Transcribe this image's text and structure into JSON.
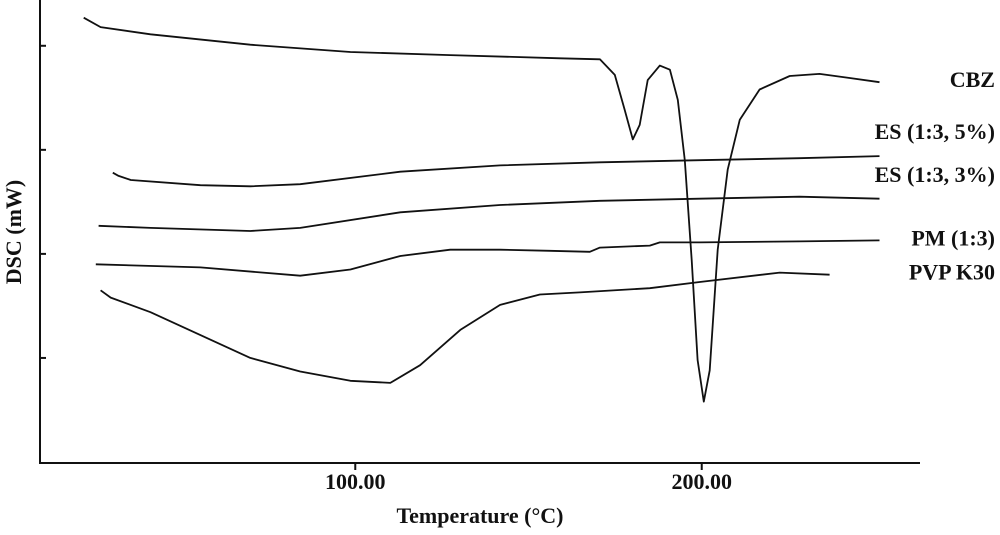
{
  "chart_data": {
    "type": "line",
    "x_label": "Temperature (°C)",
    "y_label": "DSC (mW)",
    "xlim": [
      9,
      263
    ],
    "xticks": [
      {
        "value": 100,
        "label": "100.00"
      },
      {
        "value": 200,
        "label": "200.00"
      }
    ],
    "ylim": [
      0,
      4.44
    ],
    "yticks": [
      1,
      2,
      3,
      4
    ],
    "series": [
      {
        "name": "CBZ",
        "color": "#111111",
        "x": [
          21.6,
          26.5,
          40.9,
          69.7,
          98.6,
          127.4,
          159.1,
          170.6,
          174.9,
          177.8,
          180.1,
          182.1,
          184.4,
          187.9,
          190.8,
          193.1,
          195.1,
          197.1,
          198.8,
          200.6,
          202.3,
          204.6,
          207.5,
          211.0,
          216.7,
          225.4,
          234.0,
          242.7,
          251.3
        ],
        "values": [
          4.27,
          4.18,
          4.11,
          4.01,
          3.94,
          3.91,
          3.88,
          3.87,
          3.72,
          3.38,
          3.1,
          3.24,
          3.67,
          3.81,
          3.77,
          3.48,
          2.9,
          1.94,
          0.98,
          0.58,
          0.88,
          2.04,
          2.81,
          3.29,
          3.58,
          3.71,
          3.73,
          3.69,
          3.65
        ]
      },
      {
        "name": "ES (1:3, 5%)",
        "color": "#111111",
        "x": [
          30.0,
          31.7,
          35.2,
          55.3,
          69.7,
          84.1,
          113.0,
          141.8,
          170.6,
          199.4,
          228.2,
          251.3
        ],
        "values": [
          2.78,
          2.75,
          2.71,
          2.66,
          2.65,
          2.67,
          2.79,
          2.85,
          2.88,
          2.9,
          2.92,
          2.94
        ]
      },
      {
        "name": "ES (1:3, 3%)",
        "color": "#111111",
        "x": [
          25.9,
          40.9,
          69.7,
          84.1,
          113.0,
          141.8,
          170.6,
          199.4,
          228.2,
          251.3
        ],
        "values": [
          2.27,
          2.25,
          2.22,
          2.25,
          2.4,
          2.47,
          2.51,
          2.53,
          2.55,
          2.53
        ]
      },
      {
        "name": "PM (1:3)",
        "color": "#111111",
        "x": [
          25.1,
          55.3,
          84.1,
          98.6,
          113.0,
          127.4,
          141.8,
          156.2,
          167.7,
          170.6,
          185.0,
          187.9,
          199.4,
          228.2,
          251.3
        ],
        "values": [
          1.9,
          1.87,
          1.79,
          1.85,
          1.98,
          2.04,
          2.04,
          2.03,
          2.02,
          2.06,
          2.08,
          2.11,
          2.11,
          2.12,
          2.13
        ]
      },
      {
        "name": "PVP K30",
        "color": "#111111",
        "x": [
          26.5,
          29.4,
          40.9,
          55.3,
          69.7,
          84.1,
          98.6,
          110.1,
          118.7,
          130.3,
          141.8,
          153.3,
          164.8,
          185.0,
          199.4,
          222.5,
          236.9
        ],
        "values": [
          1.65,
          1.58,
          1.44,
          1.22,
          1.0,
          0.87,
          0.78,
          0.76,
          0.93,
          1.27,
          1.51,
          1.61,
          1.63,
          1.67,
          1.73,
          1.82,
          1.8
        ]
      }
    ]
  }
}
